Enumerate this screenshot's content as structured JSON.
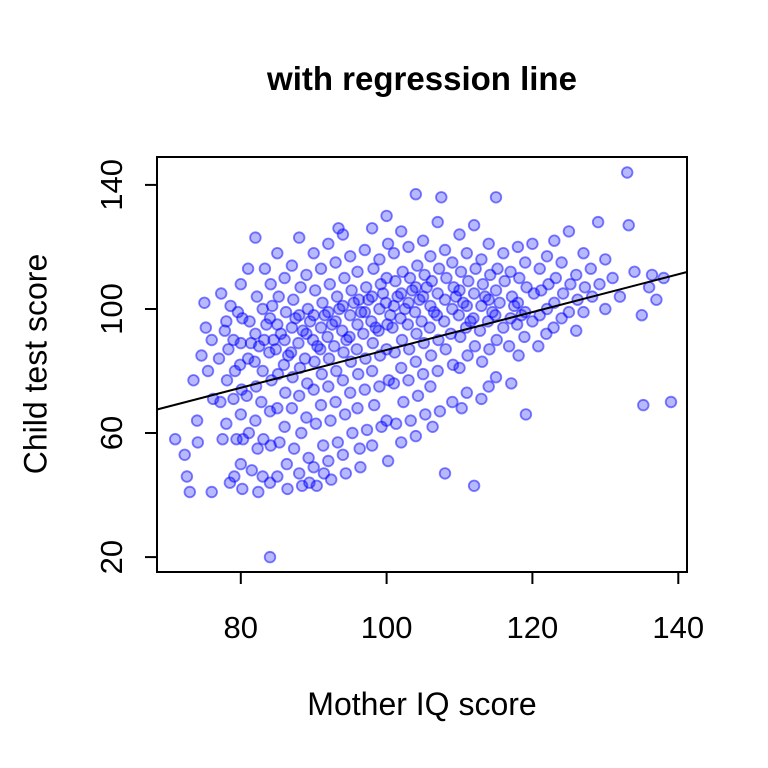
{
  "figure": {
    "title": "with regression line",
    "x_axis_label": "Mother IQ score",
    "y_axis_label": "Child test score"
  },
  "style": {
    "background": "#ffffff",
    "point_fill": "rgba(0,0,255,0.28)",
    "point_stroke": "rgba(0,0,255,0.5)",
    "regression_line_color": "#000000",
    "axis_color": "#000000",
    "text_color": "#000000"
  },
  "chart_data": {
    "type": "scatter",
    "title": "with regression line",
    "xlabel": "Mother IQ score",
    "ylabel": "Child test score",
    "xlim": [
      68.5,
      141.2
    ],
    "ylim": [
      15.2,
      149.0
    ],
    "x_ticks": [
      80,
      100,
      120,
      140
    ],
    "y_ticks": [
      20,
      60,
      100,
      140
    ],
    "grid": false,
    "legend": null,
    "regression_line": {
      "intercept": 25.8,
      "slope": 0.61
    },
    "points": [
      [
        71,
        58
      ],
      [
        72.3,
        53
      ],
      [
        72.6,
        46
      ],
      [
        73,
        41
      ],
      [
        73.5,
        77
      ],
      [
        74,
        64
      ],
      [
        74.6,
        85
      ],
      [
        75,
        102
      ],
      [
        75.2,
        94
      ],
      [
        75.5,
        80
      ],
      [
        76,
        41
      ],
      [
        76.2,
        71
      ],
      [
        74.1,
        57
      ],
      [
        76,
        90
      ],
      [
        77,
        84
      ],
      [
        77.2,
        70
      ],
      [
        77.5,
        58
      ],
      [
        78,
        96
      ],
      [
        78.1,
        77
      ],
      [
        78,
        63
      ],
      [
        78.5,
        44
      ],
      [
        79,
        90
      ],
      [
        79.2,
        80
      ],
      [
        79,
        71
      ],
      [
        79.4,
        58
      ],
      [
        79.6,
        99
      ],
      [
        80,
        108
      ],
      [
        80.2,
        97
      ],
      [
        80,
        89
      ],
      [
        79.9,
        82
      ],
      [
        80.1,
        74
      ],
      [
        80,
        66
      ],
      [
        80.3,
        58
      ],
      [
        80,
        50
      ],
      [
        77.3,
        105
      ],
      [
        78.6,
        101
      ],
      [
        79.1,
        46
      ],
      [
        80.2,
        42
      ],
      [
        78.3,
        87
      ],
      [
        77.8,
        93
      ],
      [
        81,
        113
      ],
      [
        81.2,
        96
      ],
      [
        81,
        84
      ],
      [
        80.8,
        72
      ],
      [
        81.1,
        60
      ],
      [
        81.5,
        48
      ],
      [
        82,
        123
      ],
      [
        82.2,
        104
      ],
      [
        82,
        92
      ],
      [
        81.9,
        83
      ],
      [
        82.1,
        75
      ],
      [
        82,
        64
      ],
      [
        82.3,
        55
      ],
      [
        82.5,
        88
      ],
      [
        83,
        100
      ],
      [
        83.2,
        90
      ],
      [
        83,
        80
      ],
      [
        82.8,
        70
      ],
      [
        83.1,
        58
      ],
      [
        83,
        46
      ],
      [
        83.5,
        95
      ],
      [
        84,
        20
      ],
      [
        84.1,
        108
      ],
      [
        84,
        97
      ],
      [
        83.9,
        86
      ],
      [
        84.2,
        77
      ],
      [
        84,
        67
      ],
      [
        84.1,
        56
      ],
      [
        84,
        44
      ],
      [
        84.5,
        90
      ],
      [
        81.4,
        89
      ],
      [
        82.4,
        41
      ],
      [
        83.3,
        113
      ],
      [
        84.3,
        101
      ],
      [
        85,
        118
      ],
      [
        85.2,
        104
      ],
      [
        85,
        95
      ],
      [
        84.8,
        87
      ],
      [
        85.1,
        79
      ],
      [
        85,
        68
      ],
      [
        85.3,
        57
      ],
      [
        85,
        46
      ],
      [
        85.5,
        92
      ],
      [
        86,
        110
      ],
      [
        86.2,
        99
      ],
      [
        86,
        90
      ],
      [
        85.9,
        82
      ],
      [
        86.1,
        73
      ],
      [
        86,
        62
      ],
      [
        86.3,
        50
      ],
      [
        86.5,
        85
      ],
      [
        87,
        114
      ],
      [
        87.2,
        103
      ],
      [
        87,
        94
      ],
      [
        86.9,
        86
      ],
      [
        87.1,
        78
      ],
      [
        87,
        68
      ],
      [
        87.3,
        55
      ],
      [
        87.5,
        97
      ],
      [
        88,
        123
      ],
      [
        88.2,
        107
      ],
      [
        88,
        98
      ],
      [
        87.9,
        89
      ],
      [
        88.1,
        81
      ],
      [
        88,
        72
      ],
      [
        88.3,
        60
      ],
      [
        88,
        47
      ],
      [
        88.5,
        93
      ],
      [
        86.4,
        42
      ],
      [
        88.4,
        43
      ],
      [
        89,
        111
      ],
      [
        89.2,
        100
      ],
      [
        89,
        92
      ],
      [
        88.8,
        84
      ],
      [
        89.1,
        76
      ],
      [
        89,
        65
      ],
      [
        89.3,
        52
      ],
      [
        89.5,
        96
      ],
      [
        90,
        118
      ],
      [
        90.2,
        106
      ],
      [
        90,
        98
      ],
      [
        89.9,
        90
      ],
      [
        90.1,
        83
      ],
      [
        90,
        74
      ],
      [
        90.3,
        63
      ],
      [
        90,
        49
      ],
      [
        90.5,
        88
      ],
      [
        91,
        113
      ],
      [
        91.2,
        102
      ],
      [
        91,
        94
      ],
      [
        90.9,
        87
      ],
      [
        91.1,
        79
      ],
      [
        91,
        69
      ],
      [
        91.3,
        56
      ],
      [
        91.5,
        98
      ],
      [
        92,
        121
      ],
      [
        92.2,
        108
      ],
      [
        92,
        99
      ],
      [
        91.9,
        91
      ],
      [
        92.1,
        84
      ],
      [
        92,
        75
      ],
      [
        92.3,
        64
      ],
      [
        92,
        51
      ],
      [
        92.5,
        95
      ],
      [
        90.4,
        43
      ],
      [
        92.4,
        45
      ],
      [
        89.4,
        44
      ],
      [
        91.4,
        47
      ],
      [
        93,
        115
      ],
      [
        93.2,
        104
      ],
      [
        93,
        96
      ],
      [
        92.8,
        88
      ],
      [
        93.1,
        80
      ],
      [
        93,
        70
      ],
      [
        93.3,
        57
      ],
      [
        93.5,
        100
      ],
      [
        94,
        124
      ],
      [
        94.2,
        110
      ],
      [
        94,
        101
      ],
      [
        93.9,
        93
      ],
      [
        94.1,
        86
      ],
      [
        94,
        77
      ],
      [
        94.3,
        66
      ],
      [
        94,
        53
      ],
      [
        94.5,
        90
      ],
      [
        95,
        117
      ],
      [
        95.2,
        106
      ],
      [
        95,
        98
      ],
      [
        94.9,
        91
      ],
      [
        95.1,
        83
      ],
      [
        95,
        73
      ],
      [
        95.3,
        60
      ],
      [
        95.5,
        102
      ],
      [
        96,
        112
      ],
      [
        96.2,
        103
      ],
      [
        96,
        95
      ],
      [
        95.9,
        87
      ],
      [
        96.1,
        79
      ],
      [
        96,
        68
      ],
      [
        96.3,
        55
      ],
      [
        96.5,
        99
      ],
      [
        94.4,
        47
      ],
      [
        96.4,
        49
      ],
      [
        93.4,
        126
      ],
      [
        97,
        119
      ],
      [
        97.2,
        107
      ],
      [
        97,
        99
      ],
      [
        96.8,
        92
      ],
      [
        97.1,
        84
      ],
      [
        97,
        74
      ],
      [
        97.3,
        61
      ],
      [
        97.5,
        103
      ],
      [
        98,
        126
      ],
      [
        98.2,
        113
      ],
      [
        98,
        104
      ],
      [
        97.9,
        96
      ],
      [
        98.1,
        89
      ],
      [
        98,
        80
      ],
      [
        98.3,
        69
      ],
      [
        98,
        56
      ],
      [
        98.5,
        94
      ],
      [
        99,
        116
      ],
      [
        99.2,
        108
      ],
      [
        99,
        100
      ],
      [
        98.9,
        93
      ],
      [
        99.1,
        85
      ],
      [
        99,
        75
      ],
      [
        99.3,
        62
      ],
      [
        99.5,
        105
      ],
      [
        100,
        130
      ],
      [
        100.2,
        121
      ],
      [
        100,
        110
      ],
      [
        99.9,
        102
      ],
      [
        100.1,
        95
      ],
      [
        100,
        87
      ],
      [
        100.3,
        77
      ],
      [
        100,
        64
      ],
      [
        100.2,
        51
      ],
      [
        100.5,
        98
      ],
      [
        101,
        118
      ],
      [
        101.2,
        109
      ],
      [
        101,
        101
      ],
      [
        100.8,
        94
      ],
      [
        101.1,
        86
      ],
      [
        101,
        76
      ],
      [
        101.3,
        63
      ],
      [
        101.5,
        104
      ],
      [
        102,
        125
      ],
      [
        102.2,
        112
      ],
      [
        102,
        105
      ],
      [
        101.9,
        97
      ],
      [
        102.1,
        90
      ],
      [
        102,
        81
      ],
      [
        102.3,
        70
      ],
      [
        102,
        57
      ],
      [
        102.5,
        100
      ],
      [
        103,
        120
      ],
      [
        103.2,
        110
      ],
      [
        103,
        102
      ],
      [
        102.9,
        95
      ],
      [
        103.1,
        87
      ],
      [
        103,
        77
      ],
      [
        103.3,
        64
      ],
      [
        103.5,
        106
      ],
      [
        104,
        137
      ],
      [
        104.2,
        114
      ],
      [
        104,
        107
      ],
      [
        103.9,
        99
      ],
      [
        104.1,
        92
      ],
      [
        104,
        83
      ],
      [
        104.3,
        72
      ],
      [
        104,
        59
      ],
      [
        104.5,
        103
      ],
      [
        105,
        122
      ],
      [
        105.2,
        111
      ],
      [
        105,
        104
      ],
      [
        104.8,
        96
      ],
      [
        105.1,
        89
      ],
      [
        105,
        79
      ],
      [
        105.3,
        66
      ],
      [
        105.5,
        107
      ],
      [
        106,
        117
      ],
      [
        106.2,
        109
      ],
      [
        106,
        101
      ],
      [
        105.9,
        94
      ],
      [
        106.1,
        85
      ],
      [
        106,
        75
      ],
      [
        106.3,
        62
      ],
      [
        106.5,
        99
      ],
      [
        107,
        128
      ],
      [
        107.2,
        113
      ],
      [
        107,
        105
      ],
      [
        106.9,
        98
      ],
      [
        107.1,
        90
      ],
      [
        107,
        80
      ],
      [
        107.3,
        67
      ],
      [
        107.5,
        136
      ],
      [
        108,
        119
      ],
      [
        108.2,
        110
      ],
      [
        108,
        103
      ],
      [
        107.9,
        96
      ],
      [
        108.1,
        87
      ],
      [
        108,
        47
      ],
      [
        109,
        115
      ],
      [
        109.2,
        107
      ],
      [
        109,
        100
      ],
      [
        108.8,
        92
      ],
      [
        109.1,
        82
      ],
      [
        109,
        70
      ],
      [
        109.5,
        104
      ],
      [
        110,
        124
      ],
      [
        110.2,
        112
      ],
      [
        110,
        106
      ],
      [
        109.9,
        98
      ],
      [
        110.1,
        91
      ],
      [
        110,
        81
      ],
      [
        110.3,
        68
      ],
      [
        110.5,
        102
      ],
      [
        111,
        118
      ],
      [
        111.2,
        109
      ],
      [
        111,
        101
      ],
      [
        110.9,
        94
      ],
      [
        111.1,
        85
      ],
      [
        111,
        73
      ],
      [
        111.5,
        96
      ],
      [
        112,
        127
      ],
      [
        112.2,
        113
      ],
      [
        112,
        105
      ],
      [
        111.9,
        97
      ],
      [
        112.1,
        88
      ],
      [
        112,
        43
      ],
      [
        113,
        116
      ],
      [
        113.2,
        108
      ],
      [
        113,
        101
      ],
      [
        112.8,
        93
      ],
      [
        113.1,
        83
      ],
      [
        113,
        71
      ],
      [
        113.5,
        104
      ],
      [
        114,
        121
      ],
      [
        114.2,
        111
      ],
      [
        114,
        103
      ],
      [
        113.9,
        96
      ],
      [
        114.1,
        87
      ],
      [
        114,
        75
      ],
      [
        114.5,
        99
      ],
      [
        115,
        136
      ],
      [
        115.2,
        113
      ],
      [
        115,
        106
      ],
      [
        114.9,
        98
      ],
      [
        115.1,
        90
      ],
      [
        115,
        78
      ],
      [
        115.5,
        102
      ],
      [
        116,
        118
      ],
      [
        116.2,
        109
      ],
      [
        116,
        94
      ],
      [
        117,
        112
      ],
      [
        117.2,
        104
      ],
      [
        117,
        97
      ],
      [
        116.8,
        88
      ],
      [
        117.1,
        76
      ],
      [
        117.5,
        101
      ],
      [
        118,
        120
      ],
      [
        118.2,
        110
      ],
      [
        118,
        102
      ],
      [
        117.9,
        95
      ],
      [
        118.1,
        85
      ],
      [
        118.5,
        98
      ],
      [
        119,
        115
      ],
      [
        119.2,
        107
      ],
      [
        119,
        99
      ],
      [
        118.9,
        91
      ],
      [
        119.1,
        66
      ],
      [
        120,
        121
      ],
      [
        120.2,
        105
      ],
      [
        120,
        96
      ],
      [
        121,
        113
      ],
      [
        121.2,
        106
      ],
      [
        121,
        98
      ],
      [
        120.8,
        88
      ],
      [
        122,
        117
      ],
      [
        122.2,
        108
      ],
      [
        122,
        100
      ],
      [
        121.9,
        92
      ],
      [
        123,
        122
      ],
      [
        123.2,
        110
      ],
      [
        123,
        102
      ],
      [
        122.9,
        94
      ],
      [
        124,
        115
      ],
      [
        124.2,
        105
      ],
      [
        124,
        97
      ],
      [
        125,
        125
      ],
      [
        125.2,
        108
      ],
      [
        125,
        99
      ],
      [
        126,
        111
      ],
      [
        126.2,
        103
      ],
      [
        126,
        93
      ],
      [
        127,
        118
      ],
      [
        127.2,
        107
      ],
      [
        127,
        99
      ],
      [
        128,
        113
      ],
      [
        128.2,
        104
      ],
      [
        129,
        128
      ],
      [
        129.2,
        108
      ],
      [
        130,
        116
      ],
      [
        130,
        100
      ],
      [
        131,
        110
      ],
      [
        132,
        104
      ],
      [
        133,
        144
      ],
      [
        133.2,
        127
      ],
      [
        134,
        112
      ],
      [
        135,
        98
      ],
      [
        135.2,
        69
      ],
      [
        136,
        107
      ],
      [
        137,
        103
      ],
      [
        138,
        110
      ],
      [
        139,
        70
      ],
      [
        136.4,
        111
      ]
    ]
  }
}
